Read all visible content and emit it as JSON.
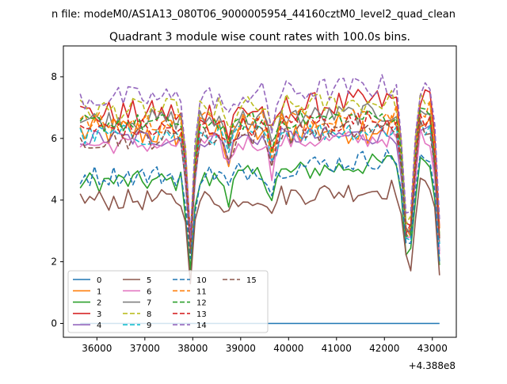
{
  "chart_data": {
    "type": "line",
    "suptitle": "n file: modeM0/AS1A13_080T06_9000005954_44160cztM0_level2_quad_clean",
    "title": "Quadrant 3 module wise count rates with 100.0s bins.",
    "xlabel": "",
    "ylabel": "",
    "x_offset_label": "+4.388e8",
    "xlim": [
      35300,
      43500
    ],
    "ylim": [
      -0.45,
      9.0
    ],
    "xticks": [
      36000,
      37000,
      38000,
      39000,
      40000,
      41000,
      42000,
      43000
    ],
    "xtick_labels": [
      "36000",
      "37000",
      "38000",
      "39000",
      "40000",
      "41000",
      "42000",
      "43000"
    ],
    "yticks": [
      0,
      2,
      4,
      6,
      8
    ],
    "ytick_labels": [
      "0",
      "2",
      "4",
      "6",
      "8"
    ],
    "grid": false,
    "legend_position": "lower-left",
    "legend_columns": 4,
    "x_start": 35650,
    "x_step": 100,
    "x_end": 43150,
    "dips": [
      {
        "x": 37950,
        "depth": 0.6
      },
      {
        "x": 38750,
        "depth": 0.12
      },
      {
        "x": 39650,
        "depth": 0.15
      },
      {
        "x": 42500,
        "depth": 0.55
      },
      {
        "x": 43150,
        "depth": 0.6
      }
    ],
    "series": [
      {
        "name": "0",
        "color": "#1f77b4",
        "dash": "solid",
        "base": 0.0,
        "rise": 0.0,
        "amp": 0.0
      },
      {
        "name": "1",
        "color": "#ff7f0e",
        "dash": "solid",
        "base": 6.2,
        "rise": 0.2,
        "amp": 0.55
      },
      {
        "name": "2",
        "color": "#2ca02c",
        "dash": "solid",
        "base": 4.6,
        "rise": 0.6,
        "amp": 0.35
      },
      {
        "name": "3",
        "color": "#d62728",
        "dash": "solid",
        "base": 6.8,
        "rise": 0.4,
        "amp": 0.45
      },
      {
        "name": "4",
        "color": "#9467bd",
        "dash": "solid",
        "base": 6.0,
        "rise": 0.1,
        "amp": 0.3
      },
      {
        "name": "5",
        "color": "#8c564b",
        "dash": "solid",
        "base": 4.0,
        "rise": 0.35,
        "amp": 0.35
      },
      {
        "name": "6",
        "color": "#e377c2",
        "dash": "solid",
        "base": 5.8,
        "rise": 0.2,
        "amp": 0.3
      },
      {
        "name": "7",
        "color": "#7f7f7f",
        "dash": "solid",
        "base": 6.6,
        "rise": 0.2,
        "amp": 0.35
      },
      {
        "name": "8",
        "color": "#bcbd22",
        "dash": "dashed",
        "base": 6.9,
        "rise": 0.3,
        "amp": 0.4
      },
      {
        "name": "9",
        "color": "#17becf",
        "dash": "dashed",
        "base": 6.1,
        "rise": 0.2,
        "amp": 0.35
      },
      {
        "name": "10",
        "color": "#1f77b4",
        "dash": "dashed",
        "base": 4.8,
        "rise": 0.55,
        "amp": 0.35
      },
      {
        "name": "11",
        "color": "#ff7f0e",
        "dash": "dashed",
        "base": 6.5,
        "rise": 0.3,
        "amp": 0.35
      },
      {
        "name": "12",
        "color": "#2ca02c",
        "dash": "dashed",
        "base": 6.5,
        "rise": 0.2,
        "amp": 0.3
      },
      {
        "name": "13",
        "color": "#d62728",
        "dash": "dashed",
        "base": 6.3,
        "rise": 0.3,
        "amp": 0.35
      },
      {
        "name": "14",
        "color": "#9467bd",
        "dash": "dashed",
        "base": 7.3,
        "rise": 0.4,
        "amp": 0.4
      },
      {
        "name": "15",
        "color": "#8c564b",
        "dash": "dashed",
        "base": 6.0,
        "rise": 0.3,
        "amp": 0.35
      }
    ]
  }
}
